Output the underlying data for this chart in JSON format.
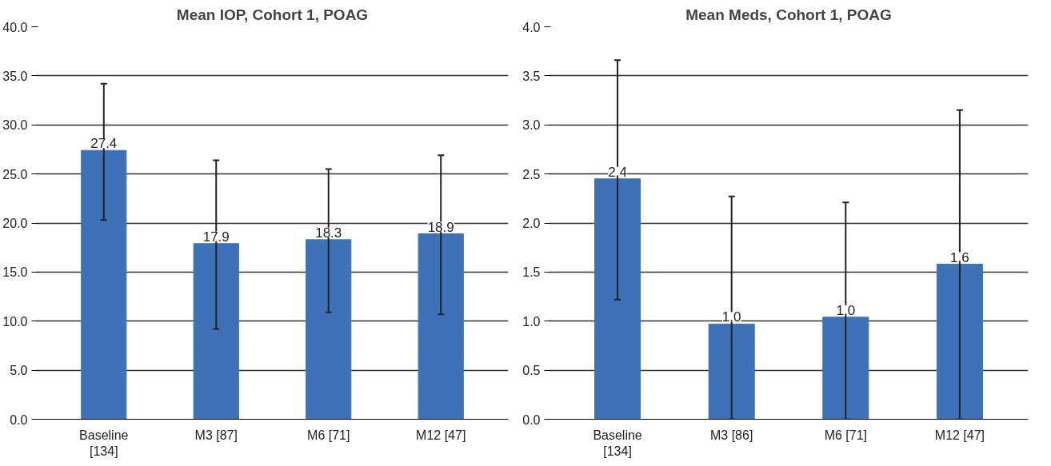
{
  "chart_data": [
    {
      "type": "bar",
      "title": "Mean IOP, Cohort 1, POAG",
      "categories": [
        "Baseline\n[134]",
        "M3 [87]",
        "M6 [71]",
        "M12 [47]"
      ],
      "values": [
        27.4,
        17.9,
        18.3,
        18.9
      ],
      "color": "#3d72b8",
      "data_labels": true,
      "errors": [
        [
          20.3,
          34.2
        ],
        [
          9.2,
          26.4
        ],
        [
          10.9,
          25.5
        ],
        [
          10.7,
          26.9
        ]
      ],
      "ylim": [
        0,
        40
      ],
      "yticks": [
        {
          "value": 0,
          "label": "0.0"
        },
        {
          "value": 5,
          "label": "5.0"
        },
        {
          "value": 10,
          "label": "10.0"
        },
        {
          "value": 15,
          "label": "15.0"
        },
        {
          "value": 20,
          "label": "20.0"
        },
        {
          "value": 25,
          "label": "25.0"
        },
        {
          "value": 30,
          "label": "30.0"
        },
        {
          "value": 35,
          "label": "35.0"
        },
        {
          "value": 40,
          "label": "40.0"
        }
      ],
      "grid": "y"
    },
    {
      "type": "bar",
      "title": "Mean Meds, Cohort 1, POAG",
      "categories": [
        "Baseline\n[134]",
        "M3 [86]",
        "M6 [71]",
        "M12 [47]"
      ],
      "values": [
        2.45,
        0.97,
        1.04,
        1.58
      ],
      "color": "#3d72b8",
      "value_labels": [
        "2.4",
        "1.0",
        "1.0",
        "1.6"
      ],
      "errors": [
        [
          1.22,
          3.66
        ],
        [
          0,
          2.27
        ],
        [
          0,
          2.21
        ],
        [
          0,
          3.15
        ]
      ],
      "ylim": [
        0,
        4
      ],
      "yticks": [
        {
          "value": 0,
          "label": "0.0"
        },
        {
          "value": 0.5,
          "label": "0.5"
        },
        {
          "value": 1,
          "label": "1.0"
        },
        {
          "value": 1.5,
          "label": "1.5"
        },
        {
          "value": 2,
          "label": "2.0"
        },
        {
          "value": 2.5,
          "label": "2.5"
        },
        {
          "value": 3,
          "label": "3.0"
        },
        {
          "value": 3.5,
          "label": "3.5"
        },
        {
          "value": 4,
          "label": "4.0"
        }
      ],
      "grid": "y"
    }
  ]
}
